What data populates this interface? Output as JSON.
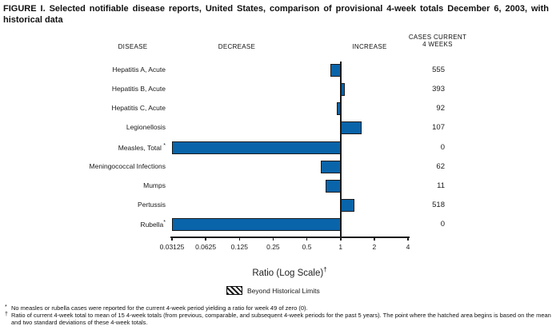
{
  "title": "FIGURE I. Selected notifiable disease reports, United States, comparison of provisional 4-week totals December 6, 2003, with historical data",
  "column_headers": {
    "disease": "DISEASE",
    "decrease": "DECREASE",
    "increase": "INCREASE",
    "cases_line1": "CASES CURRENT",
    "cases_line2": "4 WEEKS"
  },
  "chart_data": {
    "type": "bar",
    "orientation": "horizontal",
    "scale": "log2",
    "baseline_ratio": 1,
    "axis": {
      "label": "Ratio (Log Scale)",
      "label_sup": "†",
      "min": 0.03125,
      "max": 4,
      "ticks": [
        0.03125,
        0.0625,
        0.125,
        0.25,
        0.5,
        1,
        2,
        4
      ]
    },
    "rows": [
      {
        "disease": "Hepatitis A, Acute",
        "sup": "",
        "ratio": 0.81,
        "cases": "555"
      },
      {
        "disease": "Hepatitis B, Acute",
        "sup": "",
        "ratio": 1.1,
        "cases": "393"
      },
      {
        "disease": "Hepatitis C, Acute",
        "sup": "",
        "ratio": 0.93,
        "cases": "92"
      },
      {
        "disease": "Legionellosis",
        "sup": "",
        "ratio": 1.55,
        "cases": "107"
      },
      {
        "disease": "Measles, Total",
        "sup": "*",
        "ratio": 0,
        "cases": "0"
      },
      {
        "disease": "Meningococcal Infections",
        "sup": "",
        "ratio": 0.66,
        "cases": "62"
      },
      {
        "disease": "Mumps",
        "sup": "",
        "ratio": 0.74,
        "cases": "11"
      },
      {
        "disease": "Pertussis",
        "sup": "",
        "ratio": 1.33,
        "cases": "518"
      },
      {
        "disease": "Rubella",
        "sup": "*",
        "ratio": 0,
        "cases": "0"
      }
    ],
    "legend": {
      "swatch": "hatched",
      "label": "Beyond Historical Limits"
    },
    "colors": {
      "bar_fill": "#0a64a9",
      "bar_border": "#1a1a1a",
      "axis": "#1a1a1a"
    }
  },
  "footnotes": [
    {
      "marker": "*",
      "text": "No measles or rubella cases were reported for the current 4-week period yielding a ratio for week 49 of zero (0)."
    },
    {
      "marker": "†",
      "text": "Ratio of current 4-week total to mean of 15 4-week totals (from previous, comparable, and subsequent 4-week periods for the past 5 years). The point where the hatched area begins is based on the mean and two standard deviations of these 4-week totals."
    }
  ]
}
